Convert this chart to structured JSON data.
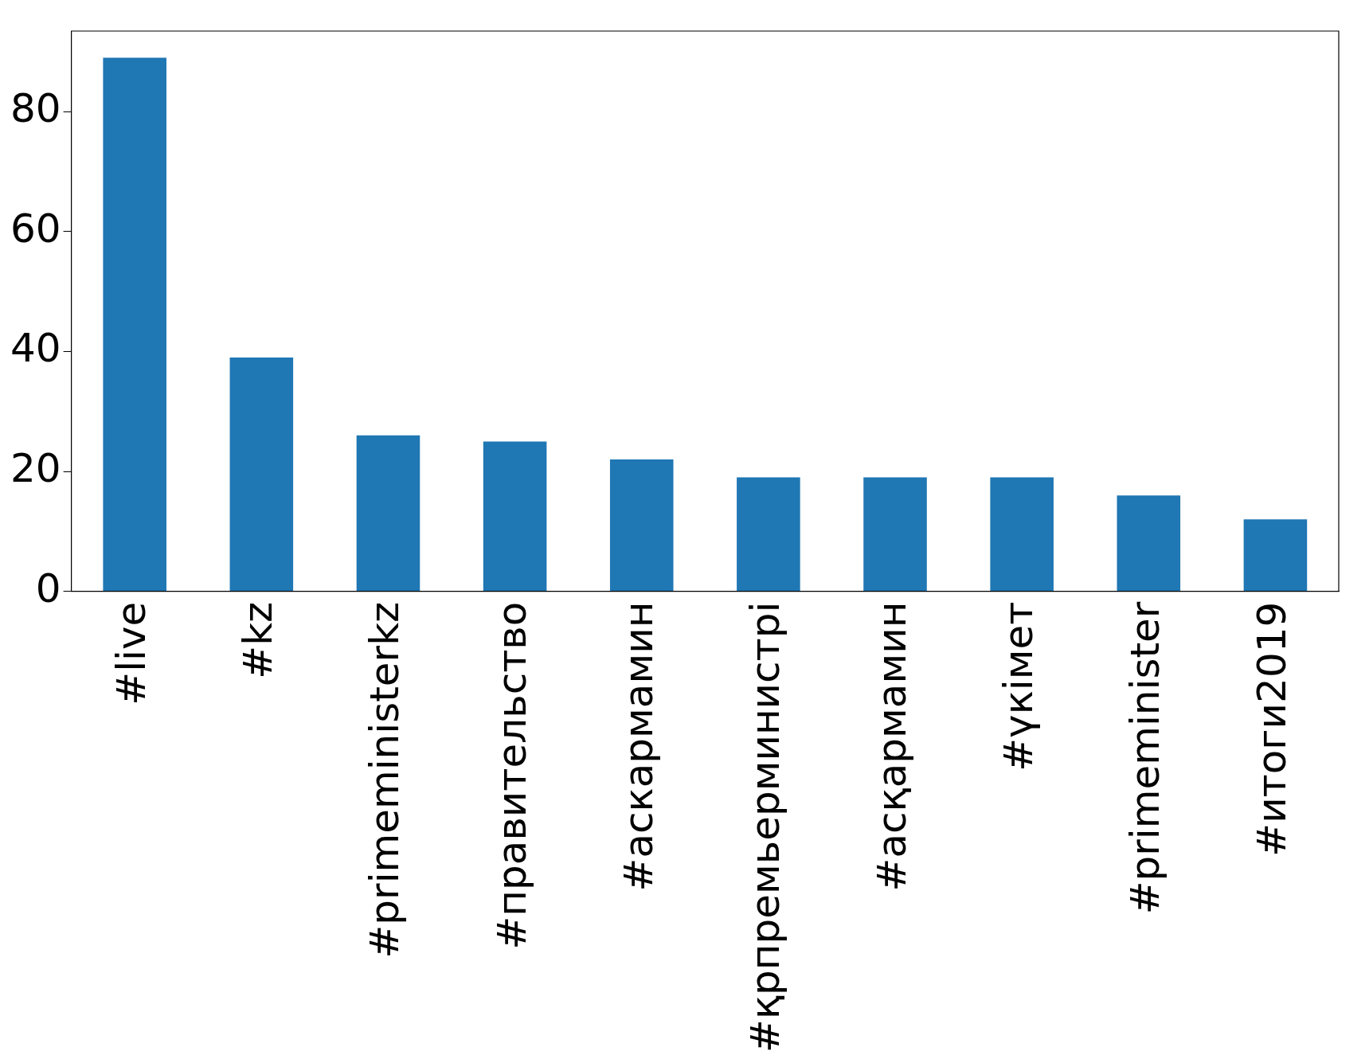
{
  "chart_data": {
    "type": "bar",
    "categories": [
      "#live",
      "#kz",
      "#primeministerkz",
      "#правительство",
      "#аскармамин",
      "#қрпремьерминистрі",
      "#асқармамин",
      "#үкімет",
      "#primeminister",
      "#итоги2019"
    ],
    "values": [
      89,
      39,
      26,
      25,
      22,
      19,
      19,
      19,
      16,
      12
    ],
    "color": "#1f77b4",
    "ylim": [
      0,
      93.45
    ],
    "yticks": [
      0,
      20,
      40,
      60,
      80
    ],
    "grid": false,
    "legend": false
  }
}
